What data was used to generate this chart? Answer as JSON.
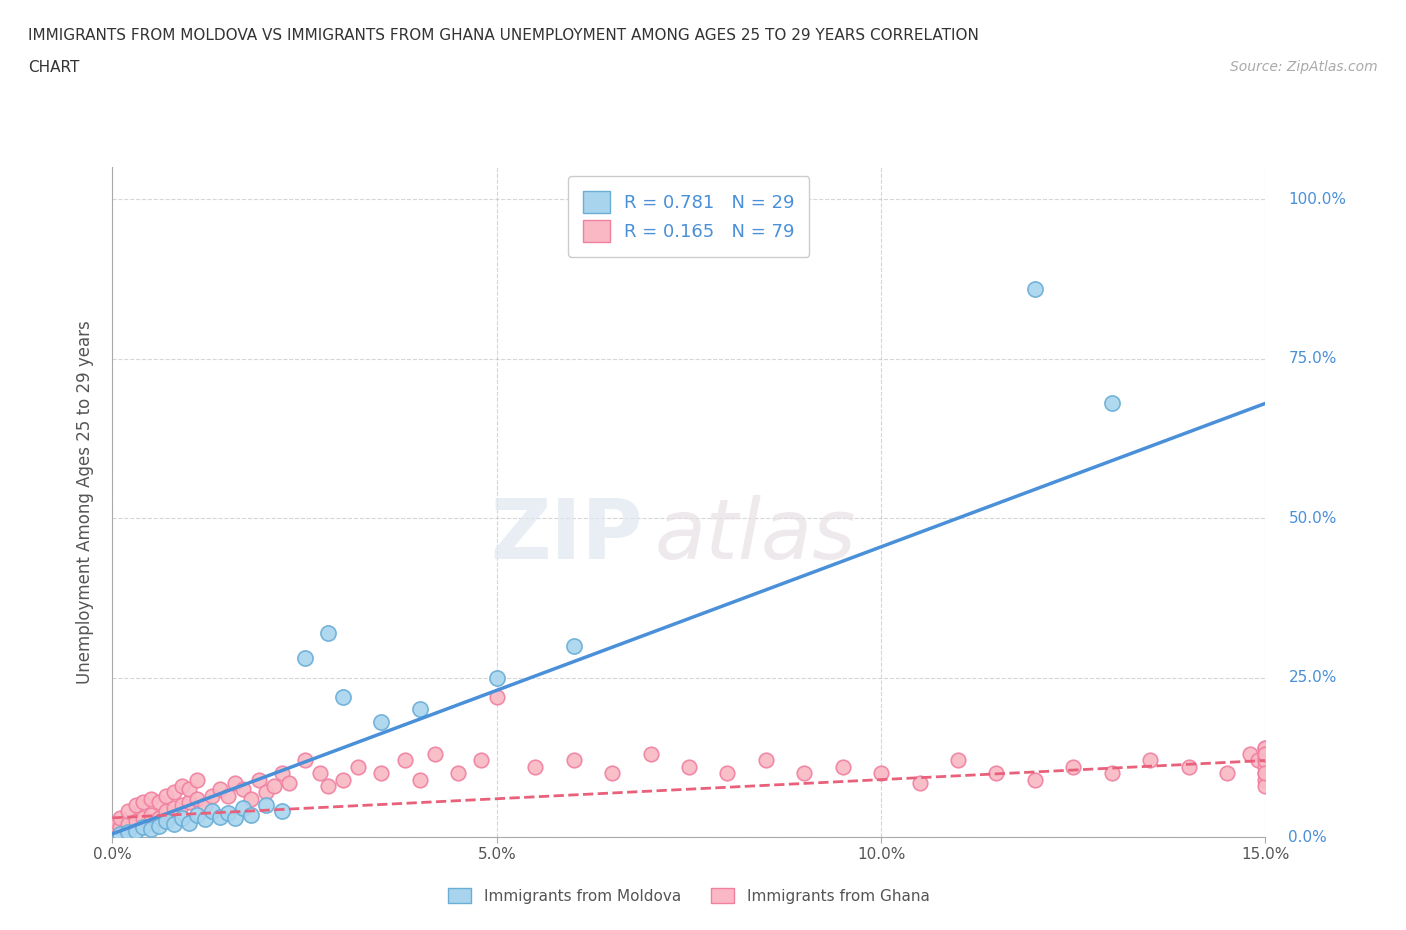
{
  "title_line1": "IMMIGRANTS FROM MOLDOVA VS IMMIGRANTS FROM GHANA UNEMPLOYMENT AMONG AGES 25 TO 29 YEARS CORRELATION",
  "title_line2": "CHART",
  "source": "Source: ZipAtlas.com",
  "ylabel": "Unemployment Among Ages 25 to 29 years",
  "xlim": [
    0.0,
    0.15
  ],
  "ylim": [
    0.0,
    1.05
  ],
  "x_ticks": [
    0.0,
    0.05,
    0.1,
    0.15
  ],
  "x_tick_labels": [
    "0.0%",
    "5.0%",
    "10.0%",
    "15.0%"
  ],
  "y_ticks": [
    0.0,
    0.25,
    0.5,
    0.75,
    1.0
  ],
  "y_tick_labels": [
    "0.0%",
    "25.0%",
    "50.0%",
    "75.0%",
    "100.0%"
  ],
  "moldova_color": "#A8D4EE",
  "moldova_edge": "#6AAED6",
  "ghana_color": "#F9B8C4",
  "ghana_edge": "#F080A0",
  "moldova_line_color": "#4A90D9",
  "ghana_line_color": "#E8607A",
  "moldova_R": 0.781,
  "moldova_N": 29,
  "ghana_R": 0.165,
  "ghana_N": 79,
  "watermark_zip": "ZIP",
  "watermark_atlas": "atlas",
  "legend_label_moldova": "Immigrants from Moldova",
  "legend_label_ghana": "Immigrants from Ghana",
  "background_color": "#ffffff",
  "grid_color": "#bbbbbb",
  "right_tick_color": "#4A90D9",
  "moldova_scatter_x": [
    0.001,
    0.002,
    0.003,
    0.004,
    0.005,
    0.006,
    0.007,
    0.008,
    0.009,
    0.01,
    0.011,
    0.012,
    0.013,
    0.014,
    0.015,
    0.016,
    0.017,
    0.018,
    0.02,
    0.022,
    0.025,
    0.028,
    0.03,
    0.035,
    0.04,
    0.05,
    0.06,
    0.12,
    0.13
  ],
  "moldova_scatter_y": [
    0.005,
    0.008,
    0.01,
    0.015,
    0.012,
    0.018,
    0.025,
    0.02,
    0.03,
    0.022,
    0.035,
    0.028,
    0.04,
    0.032,
    0.038,
    0.03,
    0.045,
    0.035,
    0.05,
    0.04,
    0.28,
    0.32,
    0.22,
    0.18,
    0.2,
    0.25,
    0.3,
    0.86,
    0.68
  ],
  "ghana_scatter_x": [
    0.0,
    0.001,
    0.001,
    0.002,
    0.002,
    0.003,
    0.003,
    0.004,
    0.004,
    0.005,
    0.005,
    0.006,
    0.006,
    0.007,
    0.007,
    0.008,
    0.008,
    0.009,
    0.009,
    0.01,
    0.01,
    0.011,
    0.011,
    0.012,
    0.013,
    0.014,
    0.015,
    0.016,
    0.017,
    0.018,
    0.019,
    0.02,
    0.021,
    0.022,
    0.023,
    0.025,
    0.027,
    0.028,
    0.03,
    0.032,
    0.035,
    0.038,
    0.04,
    0.042,
    0.045,
    0.048,
    0.05,
    0.055,
    0.06,
    0.065,
    0.07,
    0.075,
    0.08,
    0.085,
    0.09,
    0.095,
    0.1,
    0.105,
    0.11,
    0.115,
    0.12,
    0.125,
    0.13,
    0.135,
    0.14,
    0.145,
    0.148,
    0.149,
    0.15,
    0.15,
    0.15,
    0.15,
    0.15,
    0.15,
    0.15,
    0.15,
    0.15,
    0.15,
    0.15
  ],
  "ghana_scatter_y": [
    0.02,
    0.015,
    0.03,
    0.02,
    0.04,
    0.025,
    0.05,
    0.03,
    0.055,
    0.035,
    0.06,
    0.03,
    0.055,
    0.04,
    0.065,
    0.045,
    0.07,
    0.05,
    0.08,
    0.055,
    0.075,
    0.06,
    0.09,
    0.05,
    0.065,
    0.075,
    0.065,
    0.085,
    0.075,
    0.06,
    0.09,
    0.07,
    0.08,
    0.1,
    0.085,
    0.12,
    0.1,
    0.08,
    0.09,
    0.11,
    0.1,
    0.12,
    0.09,
    0.13,
    0.1,
    0.12,
    0.22,
    0.11,
    0.12,
    0.1,
    0.13,
    0.11,
    0.1,
    0.12,
    0.1,
    0.11,
    0.1,
    0.085,
    0.12,
    0.1,
    0.09,
    0.11,
    0.1,
    0.12,
    0.11,
    0.1,
    0.13,
    0.12,
    0.14,
    0.12,
    0.1,
    0.09,
    0.11,
    0.08,
    0.13,
    0.12,
    0.14,
    0.13,
    0.1
  ],
  "moldova_line_x": [
    0.0,
    0.15
  ],
  "moldova_line_y": [
    0.005,
    0.68
  ],
  "ghana_line_x": [
    0.0,
    0.15
  ],
  "ghana_line_y": [
    0.03,
    0.12
  ]
}
